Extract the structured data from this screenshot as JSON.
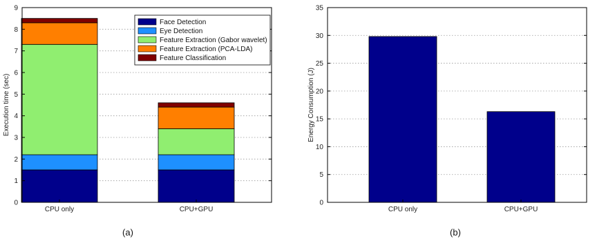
{
  "chart_data": [
    {
      "type": "bar",
      "stacked": true,
      "panel_label": "(a)",
      "ylabel": "Execution time (sec)",
      "ylim": [
        0,
        9
      ],
      "yticks": [
        0,
        1,
        2,
        3,
        4,
        5,
        6,
        7,
        8,
        9
      ],
      "grid": "horizontal dotted",
      "legend_position": "top-right",
      "categories": [
        "CPU only",
        "CPU+GPU"
      ],
      "series": [
        {
          "name": "Face Detection",
          "color": "#00008b",
          "values": [
            1.5,
            1.5
          ]
        },
        {
          "name": "Eye Detection",
          "color": "#1e90ff",
          "values": [
            0.7,
            0.7
          ]
        },
        {
          "name": "Feature Extraction (Gabor wavelet)",
          "color": "#90ee70",
          "values": [
            5.1,
            1.2
          ]
        },
        {
          "name": "Feature Extraction (PCA-LDA)",
          "color": "#ff7f00",
          "values": [
            1.0,
            1.0
          ]
        },
        {
          "name": "Feature Classification",
          "color": "#800000",
          "values": [
            0.2,
            0.2
          ]
        }
      ]
    },
    {
      "type": "bar",
      "panel_label": "(b)",
      "ylabel": "Energy Consumption (J)",
      "ylim": [
        0,
        35
      ],
      "yticks": [
        0,
        5,
        10,
        15,
        20,
        25,
        30,
        35
      ],
      "grid": "horizontal dotted",
      "categories": [
        "CPU only",
        "CPU+GPU"
      ],
      "color": "#00008b",
      "values": [
        29.8,
        16.3
      ]
    }
  ]
}
